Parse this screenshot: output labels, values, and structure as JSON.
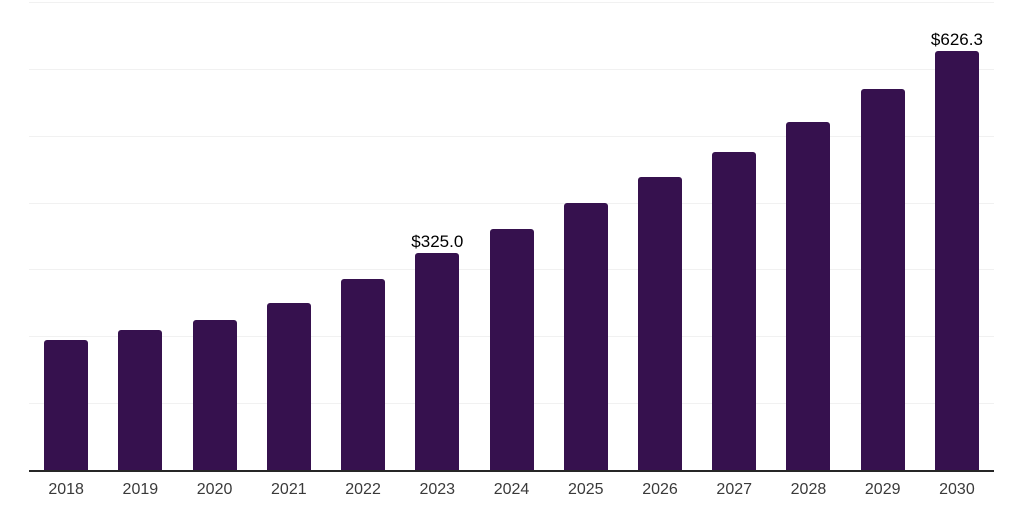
{
  "page": {
    "background_color": "#ffffff"
  },
  "chart_data": {
    "type": "bar",
    "title": "",
    "xlabel": "",
    "ylabel": "",
    "categories": [
      "2018",
      "2019",
      "2020",
      "2021",
      "2022",
      "2023",
      "2024",
      "2025",
      "2026",
      "2027",
      "2028",
      "2029",
      "2030"
    ],
    "values": [
      195,
      209,
      224,
      250,
      286,
      325.0,
      361,
      400,
      438,
      475,
      520,
      570,
      626.3
    ],
    "point_labels": [
      "",
      "",
      "",
      "",
      "",
      "$325.0",
      "",
      "",
      "",
      "",
      "",
      "",
      "$626.3"
    ],
    "ylim": [
      0,
      700
    ],
    "ygrid_step": 100,
    "grid": "horizontal",
    "y_axis_line": "none",
    "x_axis_line": "solid",
    "legend": "none",
    "colors": {
      "bar": "#36114E",
      "gridline": "#f1f1f1",
      "axis": "#262626",
      "tick_label": "#3a3a3a",
      "data_label": "#000000",
      "background": "#ffffff"
    }
  }
}
